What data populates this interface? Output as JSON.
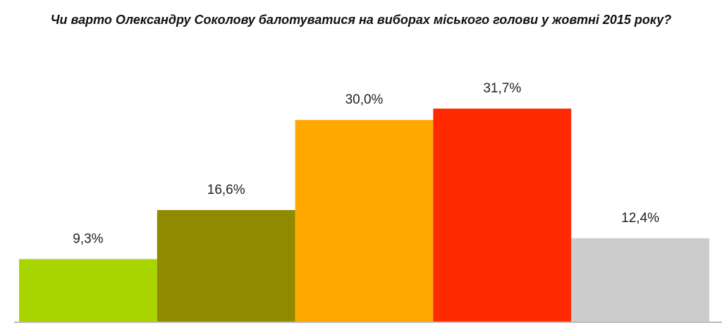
{
  "chart_data": {
    "type": "bar",
    "title": "Чи варто Олександру Соколову балотуватися на виборах міського голови у жовтні 2015 року?",
    "categories": [
      null,
      null,
      null,
      null,
      null
    ],
    "values": [
      9.3,
      16.6,
      30.0,
      31.7,
      12.4
    ],
    "value_labels": [
      "9,3%",
      "16,6%",
      "30,0%",
      "31,7%",
      "12,4%"
    ],
    "colors": [
      "#a8d400",
      "#8f8a00",
      "#ffa800",
      "#ff2a00",
      "#cccccc"
    ]
  }
}
